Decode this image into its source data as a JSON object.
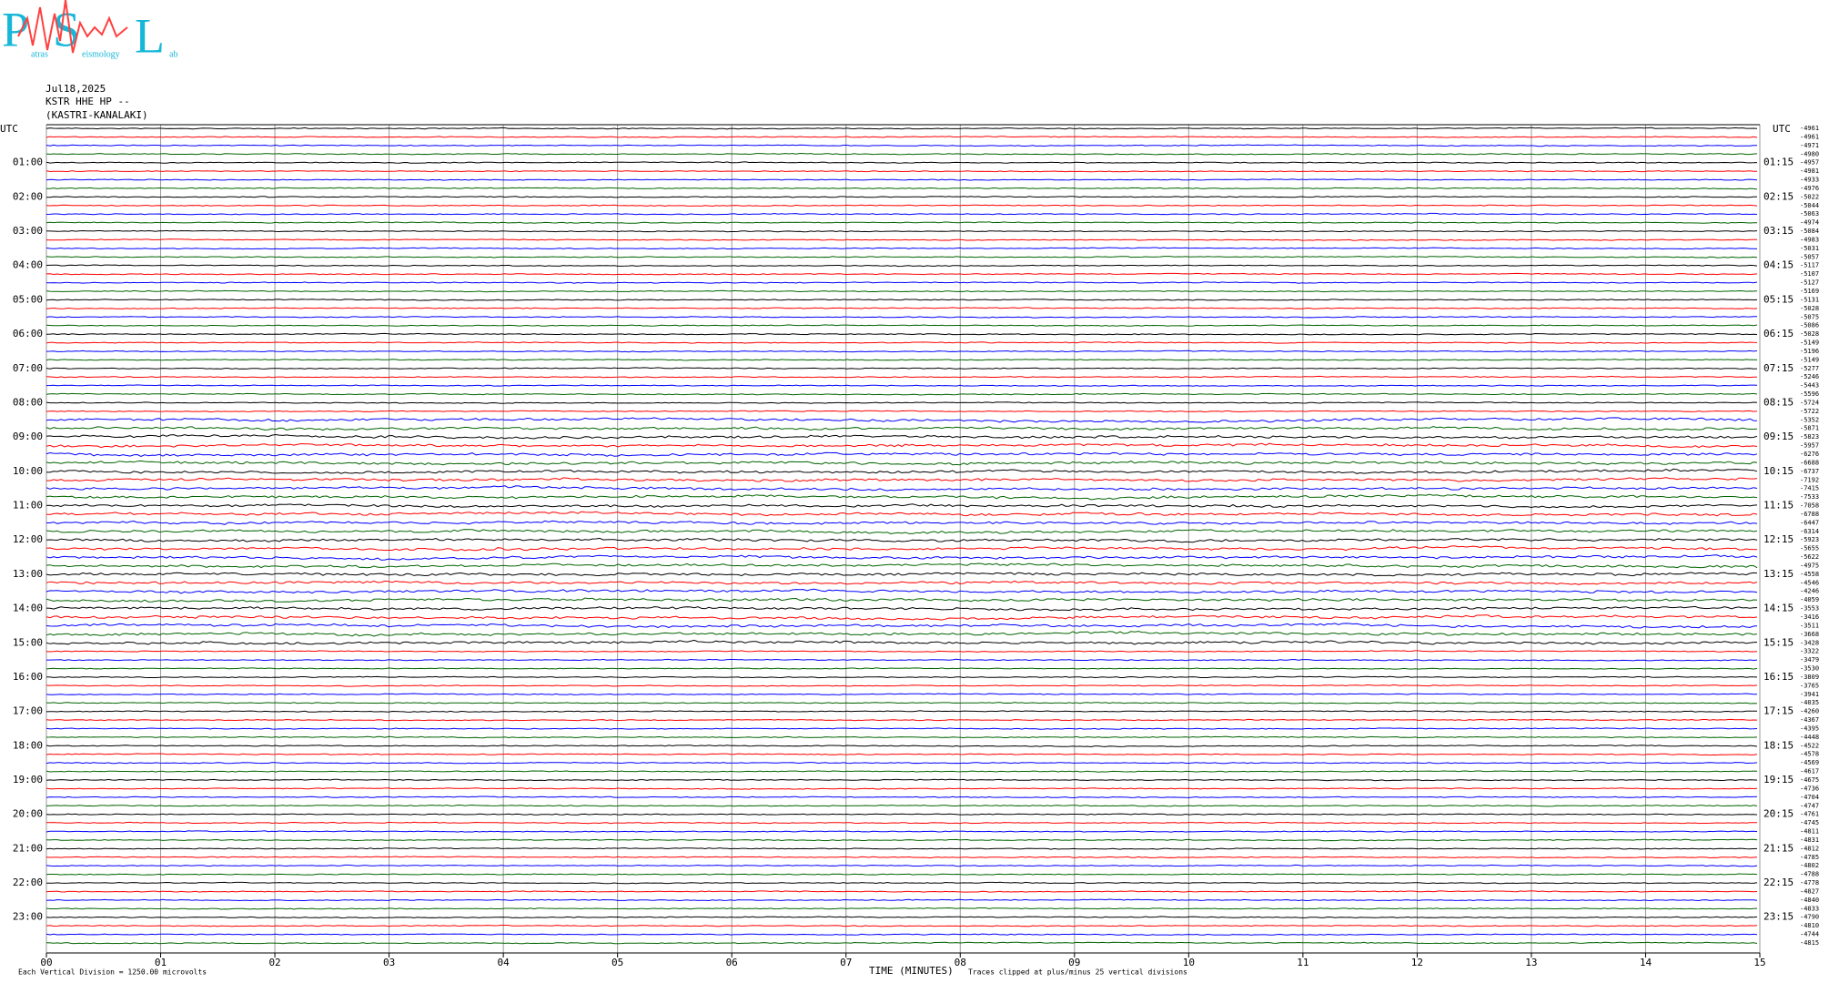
{
  "chart_data": {
    "type": "helicorder",
    "logo": {
      "big": [
        "P",
        "S",
        "L"
      ],
      "small": [
        "atras",
        "eismology",
        "ab"
      ]
    },
    "header": [
      "Jul18,2025",
      "KSTR HHE HP --",
      "(KASTRI-KANALAKI)"
    ],
    "left_axis_title": "UTC",
    "right_axis_title": "UTC",
    "left_hour_labels": [
      "01:00",
      "02:00",
      "03:00",
      "04:00",
      "05:00",
      "06:00",
      "07:00",
      "08:00",
      "09:00",
      "10:00",
      "11:00",
      "12:00",
      "13:00",
      "14:00",
      "15:00",
      "16:00",
      "17:00",
      "18:00",
      "19:00",
      "20:00",
      "21:00",
      "22:00",
      "23:00"
    ],
    "right_hour_labels": [
      "01:15",
      "02:15",
      "03:15",
      "04:15",
      "05:15",
      "06:15",
      "07:15",
      "08:15",
      "09:15",
      "10:15",
      "11:15",
      "12:15",
      "13:15",
      "14:15",
      "15:15",
      "16:15",
      "17:15",
      "18:15",
      "19:15",
      "20:15",
      "21:15",
      "22:15",
      "23:15"
    ],
    "trace_offsets": [
      -4961,
      -4961,
      -4971,
      -4980,
      -4957,
      -4981,
      -4933,
      -4976,
      -5022,
      -5044,
      -5063,
      -4974,
      -5084,
      -4983,
      -5031,
      -5057,
      -5117,
      -5107,
      -5127,
      -5169,
      -5131,
      -5028,
      -5075,
      -5086,
      -5028,
      -5149,
      -5196,
      -5149,
      -5277,
      -5246,
      -5443,
      -5596,
      -5724,
      -5722,
      -5352,
      -5871,
      -5823,
      -5957,
      -6276,
      -6688,
      -6737,
      -7192,
      -7415,
      -7533,
      -7058,
      -6788,
      -6447,
      -6314,
      -5923,
      -5655,
      -5622,
      -4975,
      -4558,
      -4546,
      -4246,
      -4059,
      -3553,
      -3416,
      -3511,
      -3668,
      -3428,
      -3322,
      -3479,
      -3530,
      -3809,
      -3765,
      -3941,
      -4035,
      -4260,
      -4367,
      -4395,
      -4448,
      -4522,
      -4578,
      -4569,
      -4617,
      -4675,
      -4736,
      -4704,
      -4747,
      -4761,
      -4745,
      -4811,
      -4831,
      -4812,
      -4785,
      -4802,
      -4788,
      -4778,
      -4827,
      -4840,
      -4833,
      -4790,
      -4810,
      -4744,
      -4815
    ],
    "trace_colors": [
      "#000000",
      "#ff0000",
      "#0000ff",
      "#006400"
    ],
    "x_label": "TIME (MINUTES)",
    "xlim": [
      0,
      15
    ],
    "xticks": [
      {
        "value": 0,
        "label": "00"
      },
      {
        "value": 1,
        "label": "01"
      },
      {
        "value": 2,
        "label": "02"
      },
      {
        "value": 3,
        "label": "03"
      },
      {
        "value": 4,
        "label": "04"
      },
      {
        "value": 5,
        "label": "05"
      },
      {
        "value": 6,
        "label": "06"
      },
      {
        "value": 7,
        "label": "07"
      },
      {
        "value": 8,
        "label": "08"
      },
      {
        "value": 9,
        "label": "09"
      },
      {
        "value": 10,
        "label": "10"
      },
      {
        "value": 11,
        "label": "11"
      },
      {
        "value": 12,
        "label": "12"
      },
      {
        "value": 13,
        "label": "13"
      },
      {
        "value": 14,
        "label": "14"
      },
      {
        "value": 15,
        "label": "15"
      }
    ],
    "grid": true,
    "footer_left": "Each Vertical Division = 1250.00 microvolts",
    "footer_right": "Traces clipped at plus/minus 25 vertical divisions"
  }
}
